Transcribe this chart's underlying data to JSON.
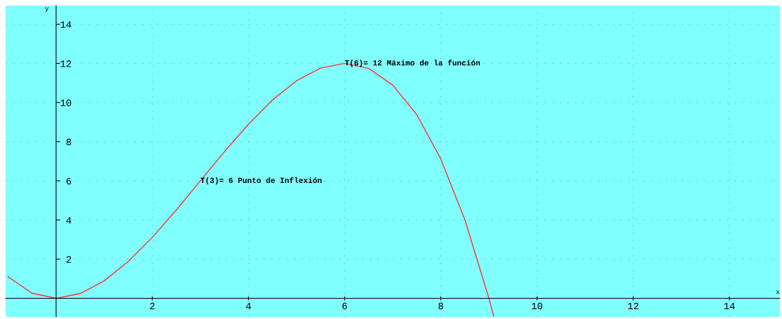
{
  "chart_data": {
    "type": "line",
    "xlabel": "x",
    "ylabel": "y",
    "x": [
      -1,
      -0.5,
      0,
      0.5,
      1,
      1.5,
      2,
      2.5,
      3,
      3.5,
      4,
      4.5,
      5,
      5.5,
      6,
      6.5,
      7,
      7.5,
      8,
      8.5,
      9,
      9.1
    ],
    "series": [
      {
        "color": "#ff3030",
        "values": [
          1.11,
          0.26,
          0,
          0.24,
          0.89,
          1.88,
          3.11,
          4.51,
          6,
          7.49,
          8.89,
          10.13,
          11.11,
          11.76,
          12,
          11.74,
          10.89,
          9.38,
          7.11,
          4.01,
          0,
          -0.92
        ]
      }
    ],
    "xlim": [
      -1.05,
      15.05
    ],
    "ylim": [
      -0.95,
      14.95
    ],
    "xticks": [
      2,
      4,
      6,
      8,
      10,
      12,
      14
    ],
    "yticks": [
      2,
      4,
      6,
      8,
      10,
      12,
      14
    ],
    "grid": true,
    "marker": "none",
    "line_style": "solid",
    "annotations": [
      {
        "text": "T(3)= 6 Punto de Inflexión",
        "x": 3,
        "y": 6
      },
      {
        "text": "T(6)= 12 Máximo de la función",
        "x": 6,
        "y": 12
      }
    ]
  }
}
